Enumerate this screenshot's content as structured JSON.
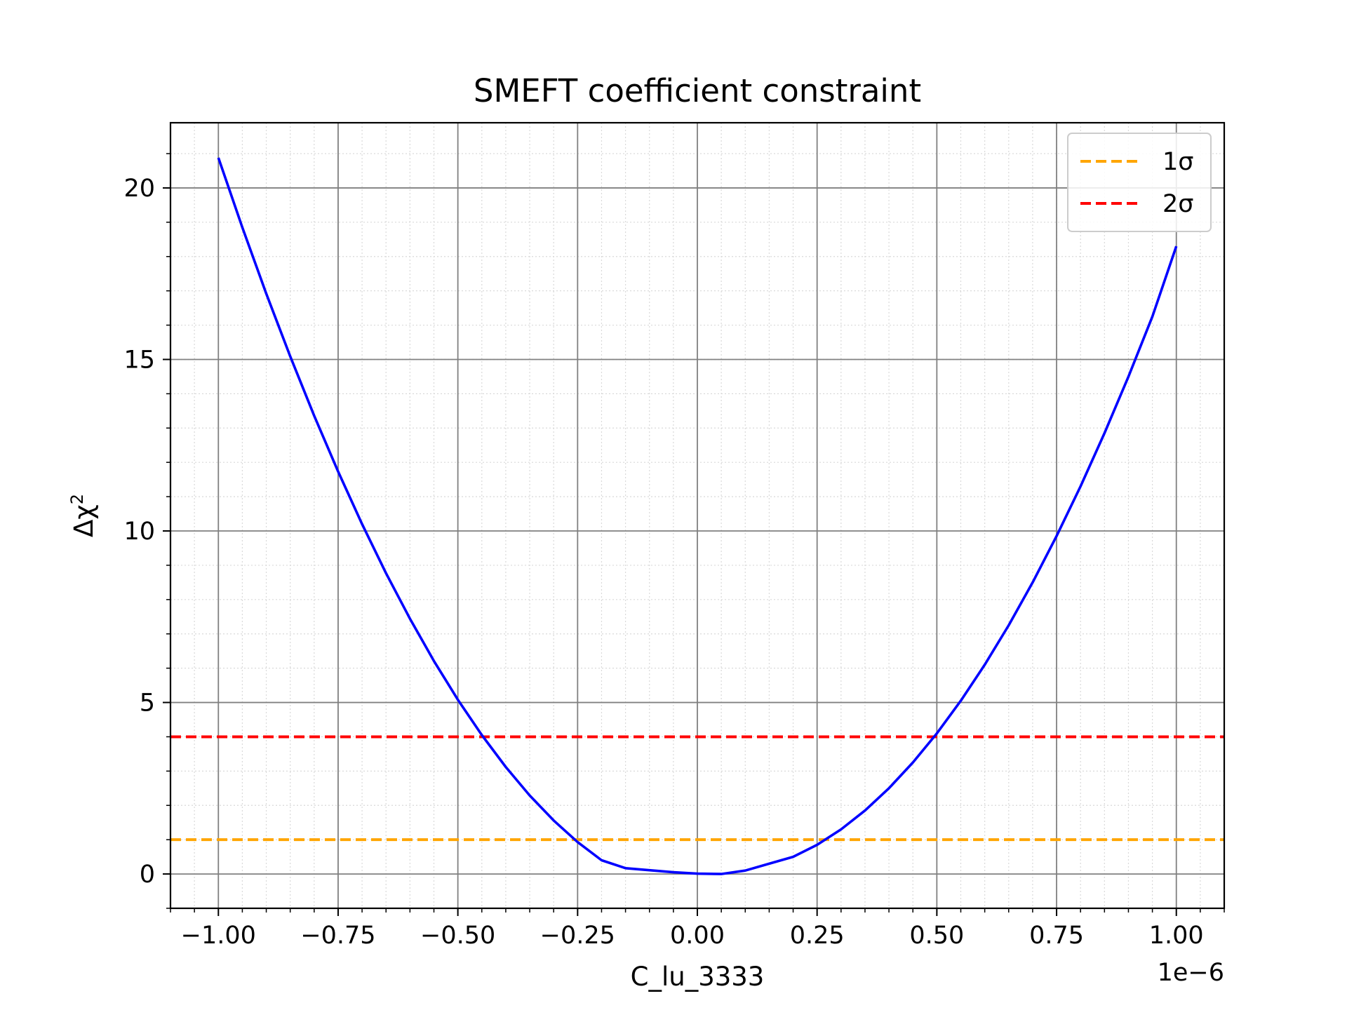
{
  "chart_data": {
    "type": "line",
    "title": "SMEFT coefficient constraint",
    "xlabel": "C_lu_3333",
    "ylabel": "Δχ²",
    "x_offset_text": "1e−6",
    "xlim": [
      -1.1,
      1.1
    ],
    "ylim": [
      -1.0,
      21.9
    ],
    "xticks": [
      -1.0,
      -0.75,
      -0.5,
      -0.25,
      0.0,
      0.25,
      0.5,
      0.75,
      1.0
    ],
    "xtick_labels": [
      "−1.00",
      "−0.75",
      "−0.50",
      "−0.25",
      "0.00",
      "0.25",
      "0.50",
      "0.75",
      "1.00"
    ],
    "yticks": [
      0,
      5,
      10,
      15,
      20
    ],
    "ytick_labels": [
      "0",
      "5",
      "10",
      "15",
      "20"
    ],
    "grid": true,
    "minor_grid": true,
    "legend_position": "top-right",
    "series": [
      {
        "color": "#0000ff",
        "x": [
          -1.0,
          -0.95,
          -0.9,
          -0.85,
          -0.8,
          -0.75,
          -0.7,
          -0.65,
          -0.6,
          -0.55,
          -0.5,
          -0.45,
          -0.4,
          -0.35,
          -0.3,
          -0.25,
          -0.2,
          -0.15,
          -0.1,
          -0.05,
          0.0,
          0.05,
          0.1,
          0.15,
          0.2,
          0.25,
          0.3,
          0.35,
          0.4,
          0.45,
          0.5,
          0.55,
          0.6,
          0.65,
          0.7,
          0.75,
          0.8,
          0.85,
          0.9,
          0.95,
          1.0
        ],
        "y": [
          20.88,
          18.85,
          16.92,
          15.09,
          13.36,
          11.73,
          10.2,
          8.77,
          7.44,
          6.21,
          5.08,
          4.05,
          3.12,
          2.29,
          1.56,
          0.93,
          0.4,
          0.17,
          0.11,
          0.05,
          0.01,
          0.0,
          0.1,
          0.3,
          0.5,
          0.85,
          1.3,
          1.85,
          2.5,
          3.25,
          4.1,
          5.05,
          6.1,
          7.25,
          8.5,
          9.85,
          11.3,
          12.85,
          14.5,
          16.25,
          18.3
        ]
      },
      {
        "name": "1σ",
        "color": "#ffa500",
        "dashed": true,
        "y_const": 1
      },
      {
        "name": "2σ",
        "color": "#ff0000",
        "dashed": true,
        "y_const": 4
      }
    ]
  }
}
